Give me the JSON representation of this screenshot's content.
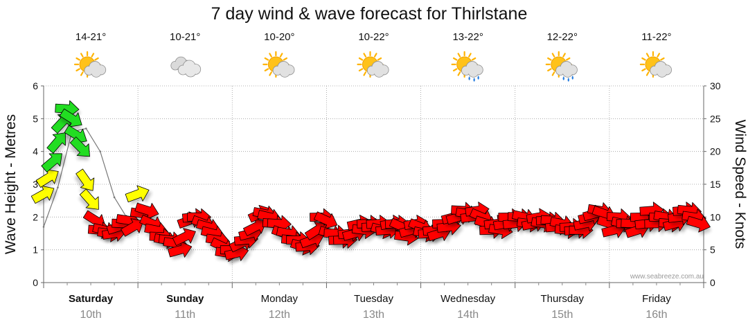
{
  "chart_data": {
    "type": "line",
    "title": "7 day wind & wave forecast for Thirlstane",
    "y_left": {
      "label": "Wave Height - Metres",
      "range": [
        0,
        6
      ],
      "ticks": [
        "0",
        "1",
        "2",
        "3",
        "4",
        "5",
        "6"
      ]
    },
    "y_right": {
      "label": "Wind Speed - Knots",
      "range": [
        0,
        30
      ],
      "ticks": [
        "0",
        "5",
        "10",
        "15",
        "20",
        "25",
        "30"
      ]
    },
    "days": [
      {
        "name": "Saturday",
        "date": "10th",
        "temp": "14-21°",
        "weather": "partly-cloudy",
        "bold": true
      },
      {
        "name": "Sunday",
        "date": "11th",
        "temp": "10-21°",
        "weather": "cloudy",
        "bold": true
      },
      {
        "name": "Monday",
        "date": "12th",
        "temp": "10-20°",
        "weather": "partly-cloudy",
        "bold": false
      },
      {
        "name": "Tuesday",
        "date": "13th",
        "temp": "10-22°",
        "weather": "partly-cloudy",
        "bold": false
      },
      {
        "name": "Wednesday",
        "date": "14th",
        "temp": "13-22°",
        "weather": "showers",
        "bold": false
      },
      {
        "name": "Thursday",
        "date": "15th",
        "temp": "12-22°",
        "weather": "showers",
        "bold": false
      },
      {
        "name": "Friday",
        "date": "16th",
        "temp": "11-22°",
        "weather": "partly-cloudy",
        "bold": false
      }
    ],
    "wave_series": {
      "x_day": [
        0.0,
        0.15,
        0.3,
        0.45,
        0.6,
        0.75,
        0.9,
        1.0
      ],
      "height_m": [
        1.7,
        2.9,
        4.6,
        4.7,
        4.0,
        2.6,
        1.9,
        1.9
      ]
    },
    "wind_series": {
      "x_day": [
        0.0,
        0.05,
        0.1,
        0.15,
        0.2,
        0.25,
        0.3,
        0.35,
        0.4,
        0.45,
        0.5,
        0.55,
        0.6,
        0.65,
        0.7,
        0.75,
        0.8,
        0.85,
        0.9,
        0.95,
        1.0,
        1.05,
        1.1,
        1.15,
        1.2,
        1.25,
        1.3,
        1.35,
        1.4,
        1.45,
        1.5,
        1.55,
        1.6,
        1.65,
        1.7,
        1.75,
        1.8,
        1.85,
        1.9,
        1.95,
        2.0,
        2.05,
        2.1,
        2.15,
        2.2,
        2.25,
        2.3,
        2.35,
        2.4,
        2.45,
        2.5,
        2.55,
        2.6,
        2.65,
        2.7,
        2.75,
        2.8,
        2.85,
        2.9,
        2.95,
        3.0,
        3.05,
        3.1,
        3.15,
        3.2,
        3.25,
        3.3,
        3.35,
        3.4,
        3.45,
        3.5,
        3.55,
        3.6,
        3.65,
        3.7,
        3.75,
        3.8,
        3.85,
        3.9,
        3.95,
        4.0,
        4.05,
        4.1,
        4.15,
        4.2,
        4.25,
        4.3,
        4.35,
        4.4,
        4.45,
        4.5,
        4.55,
        4.6,
        4.65,
        4.7,
        4.75,
        4.8,
        4.85,
        4.9,
        4.95,
        5.0,
        5.05,
        5.1,
        5.15,
        5.2,
        5.25,
        5.3,
        5.35,
        5.4,
        5.45,
        5.5,
        5.55,
        5.6,
        5.65,
        5.7,
        5.75,
        5.8,
        5.85,
        5.9,
        5.95,
        6.0,
        6.05,
        6.1,
        6.15,
        6.2,
        6.25,
        6.3,
        6.35,
        6.4,
        6.45,
        6.5,
        6.55,
        6.6,
        6.65,
        6.7,
        6.75,
        6.8,
        6.85,
        6.9,
        6.95
      ],
      "speed_kn": [
        13.5,
        16,
        18.5,
        21.5,
        24.5,
        26.5,
        25,
        22.5,
        20.5,
        15.5,
        12.5,
        9.5,
        8,
        8,
        7.5,
        7.5,
        8.5,
        9,
        9.5,
        8.5,
        13.5,
        10.5,
        11,
        9,
        8,
        7,
        6.5,
        6.5,
        6,
        5,
        7,
        9.5,
        10,
        10,
        9,
        8.5,
        7.5,
        6.5,
        5.5,
        4.5,
        5,
        4.5,
        6,
        6.5,
        7.5,
        8.5,
        10.5,
        10.5,
        10,
        9,
        9,
        7.5,
        7.5,
        6.5,
        6.5,
        5.5,
        5.5,
        6.5,
        8,
        10,
        9.5,
        7.5,
        7.5,
        6.5,
        6.5,
        7.5,
        7.5,
        9,
        8,
        9,
        8.5,
        9,
        8,
        8,
        9,
        9,
        8.5,
        7,
        8,
        9,
        8.5,
        7.5,
        7.5,
        8,
        7.5,
        9,
        8.5,
        10,
        10,
        11,
        10.5,
        10,
        11,
        10,
        9,
        8,
        9,
        8,
        9,
        10,
        9,
        10,
        10,
        9,
        9,
        10,
        9,
        9.5,
        9.5,
        8.5,
        9,
        8,
        8.5,
        8,
        8,
        9,
        10,
        10.5,
        11,
        10.5,
        9,
        8,
        10,
        9,
        9,
        9,
        8,
        10,
        9,
        11,
        9,
        10,
        10,
        9,
        9,
        10,
        11,
        11,
        10,
        9
      ],
      "colour_scale": {
        "green_above_kn": 18,
        "yellow_above_kn": 12,
        "green": "#22dd22",
        "yellow": "#ffff00",
        "red": "#ff0000"
      }
    },
    "grid": true,
    "watermark": "www.seabreeze.com.au"
  }
}
